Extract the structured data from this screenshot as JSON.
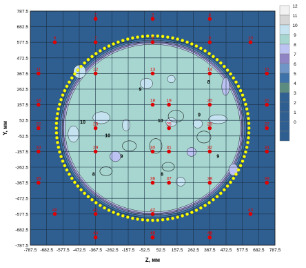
{
  "chart_data": {
    "type": "heatmap",
    "title": "",
    "xlabel": "Z, мм",
    "ylabel": "Y, мм",
    "xlim": [
      -787.5,
      787.5
    ],
    "ylim": [
      -787.5,
      787.5
    ],
    "grid": true,
    "x_ticks": [
      "-787.5",
      "-682.5",
      "-577.5",
      "-472.5",
      "-367.5",
      "-262.5",
      "-157.5",
      "-52.5",
      "52.5",
      "157.5",
      "262.5",
      "367.5",
      "472.5",
      "577.5",
      "682.5",
      "787.5"
    ],
    "y_ticks": [
      "787.5",
      "682.5",
      "577.5",
      "472.5",
      "367.5",
      "262.5",
      "157.5",
      "52.5",
      "-52.5",
      "-157.5",
      "-262.5",
      "-367.5",
      "-472.5",
      "-577.5",
      "-682.5",
      "-787.5"
    ],
    "legend_position": "right",
    "legend": [
      {
        "label": "12",
        "color": "#f2f2f2"
      },
      {
        "label": "11",
        "color": "#d6d6d6"
      },
      {
        "label": "10",
        "color": "#c4e2f0"
      },
      {
        "label": "9",
        "color": "#a6d6cf"
      },
      {
        "label": "8",
        "color": "#bcc3f2"
      },
      {
        "label": "7",
        "color": "#8f84c4"
      },
      {
        "label": "6",
        "color": "#6f96c6"
      },
      {
        "label": "5",
        "color": "#3d73a8"
      },
      {
        "label": "4",
        "color": "#5c8c80"
      },
      {
        "label": "3",
        "color": "#306192"
      },
      {
        "label": "2",
        "color": "#2f5f91"
      },
      {
        "label": "1",
        "color": "#2f5f91"
      },
      {
        "label": "0",
        "color": "#2f5f91"
      },
      {
        "label": "",
        "color": "#2f5f91"
      }
    ],
    "circle": {
      "center": [
        0,
        0
      ],
      "radius": 620,
      "boundary_color": "#ffff00"
    },
    "inner_fill_color": "#a6d6cf",
    "outer_fill_color": "#2f5f91",
    "marker_color": "#e00000",
    "markers": [
      {
        "label": "2",
        "z": -367.5,
        "y": 735
      },
      {
        "label": "3",
        "z": 0,
        "y": 735
      },
      {
        "label": "4",
        "z": 367.5,
        "y": 735
      },
      {
        "label": "6",
        "z": -630,
        "y": 577.5
      },
      {
        "label": "7",
        "z": -367.5,
        "y": 577.5
      },
      {
        "label": "8",
        "z": 0,
        "y": 577.5
      },
      {
        "label": "9",
        "z": 367.5,
        "y": 577.5
      },
      {
        "label": "10",
        "z": 630,
        "y": 577.5
      },
      {
        "label": "11",
        "z": -735,
        "y": 367.5
      },
      {
        "label": "12",
        "z": -367.5,
        "y": 367.5
      },
      {
        "label": "13",
        "z": 0,
        "y": 367.5
      },
      {
        "label": "14",
        "z": 367.5,
        "y": 367.5
      },
      {
        "label": "15",
        "z": 735,
        "y": 367.5
      },
      {
        "label": "16",
        "z": -735,
        "y": 157.5
      },
      {
        "label": "18",
        "z": 0,
        "y": 157.5
      },
      {
        "label": "19",
        "z": 105,
        "y": 157.5
      },
      {
        "label": "20",
        "z": 367.5,
        "y": 157.5
      },
      {
        "label": "21",
        "z": 735,
        "y": 157.5
      },
      {
        "label": "22",
        "z": -735,
        "y": 0
      },
      {
        "label": "25",
        "z": 105,
        "y": 0
      },
      {
        "label": "26",
        "z": -367.5,
        "y": 0
      },
      {
        "label": "27",
        "z": 735,
        "y": 0
      },
      {
        "label": "28",
        "z": 367.5,
        "y": 0
      },
      {
        "label": "29",
        "z": -367.5,
        "y": -157.5
      },
      {
        "label": "30",
        "z": 0,
        "y": -157.5
      },
      {
        "label": "31",
        "z": 105,
        "y": -157.5
      },
      {
        "label": "32",
        "z": 367.5,
        "y": -157.5
      },
      {
        "label": "33",
        "z": -735,
        "y": -157.5
      },
      {
        "label": "34",
        "z": 735,
        "y": -157.5
      },
      {
        "label": "35",
        "z": -735,
        "y": -367.5
      },
      {
        "label": "36",
        "z": 0,
        "y": -367.5
      },
      {
        "label": "37",
        "z": 105,
        "y": -367.5
      },
      {
        "label": "38",
        "z": 367.5,
        "y": -367.5
      },
      {
        "label": "39",
        "z": 735,
        "y": -367.5
      },
      {
        "label": "40",
        "z": -630,
        "y": -577.5
      },
      {
        "label": "41",
        "z": -367.5,
        "y": -577.5
      },
      {
        "label": "42",
        "z": 0,
        "y": -577.5
      },
      {
        "label": "43",
        "z": 630,
        "y": -577.5
      },
      {
        "label": "44",
        "z": -367.5,
        "y": -735
      },
      {
        "label": "45",
        "z": 0,
        "y": -735
      },
      {
        "label": "46",
        "z": 367.5,
        "y": -735
      },
      {
        "label": "47",
        "z": 0,
        "y": -735
      },
      {
        "label": "48",
        "z": 367.5,
        "y": -735
      }
    ],
    "contour_labels": [
      {
        "text": "9",
        "z": -80,
        "y": 250
      },
      {
        "text": "10",
        "z": -450,
        "y": 30
      },
      {
        "text": "10",
        "z": -290,
        "y": -60
      },
      {
        "text": "10",
        "z": 50,
        "y": 40
      },
      {
        "text": "9",
        "z": 300,
        "y": 80
      },
      {
        "text": "8",
        "z": 360,
        "y": 300
      },
      {
        "text": "8",
        "z": -380,
        "y": -320
      },
      {
        "text": "9",
        "z": -200,
        "y": -200
      },
      {
        "text": "8",
        "z": 60,
        "y": -320
      },
      {
        "text": "9",
        "z": 420,
        "y": -200
      }
    ]
  }
}
